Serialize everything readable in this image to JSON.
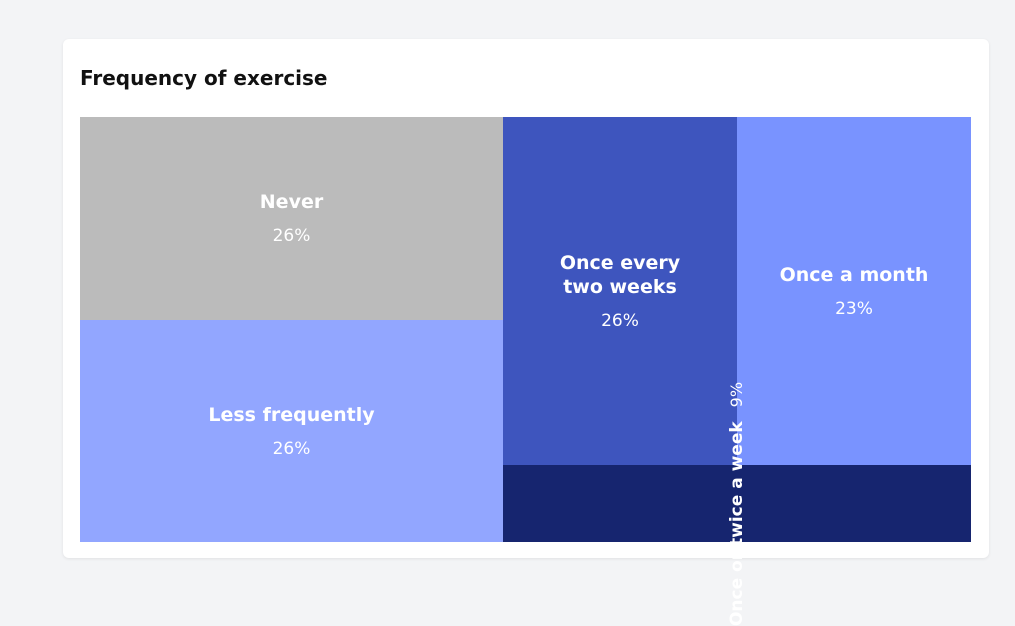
{
  "chart_data": {
    "type": "treemap",
    "title": "Frequency of exercise",
    "items": [
      {
        "label": "Never",
        "display_value": "26%",
        "value": 26,
        "color": "#bbbbbb"
      },
      {
        "label": "Less frequently",
        "display_value": "26%",
        "value": 26,
        "color": "#92a6ff"
      },
      {
        "label": "Once every two weeks",
        "display_value": "26%",
        "value": 26,
        "color": "#3e55be"
      },
      {
        "label": "Once a month",
        "display_value": "23%",
        "value": 23,
        "color": "#7993ff"
      },
      {
        "label": "Once or twice a week",
        "display_value": "9%",
        "value": 9,
        "color": "#16256f"
      }
    ]
  }
}
